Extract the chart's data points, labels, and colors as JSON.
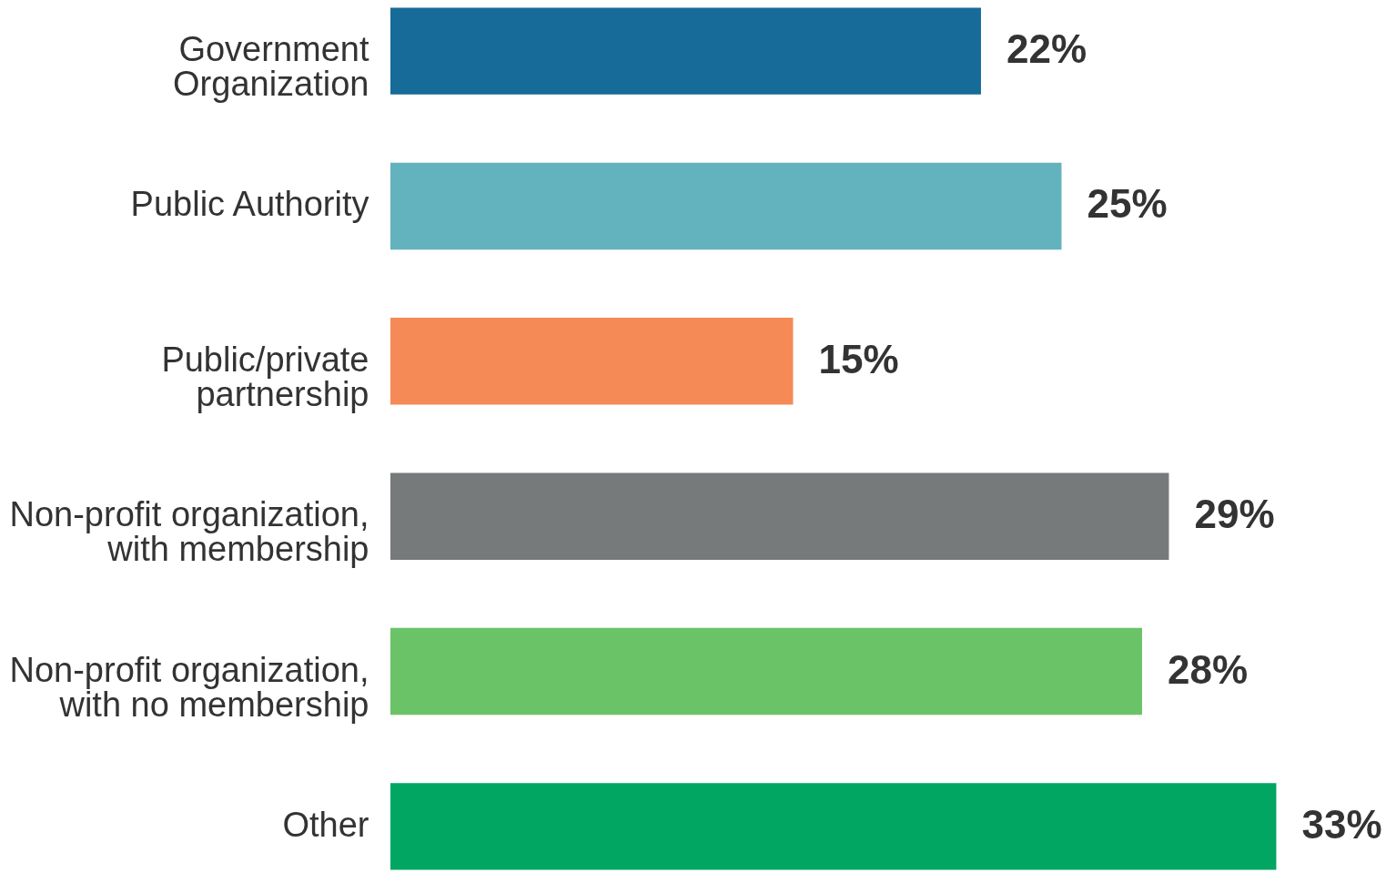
{
  "chart_data": {
    "type": "bar",
    "orientation": "horizontal",
    "categories": [
      "Government Organization",
      "Public Authority",
      "Public/private partnership",
      "Non-profit organization, with membership",
      "Non-profit organization, with no membership",
      "Other"
    ],
    "values": [
      22,
      25,
      15,
      29,
      28,
      33
    ],
    "colors": [
      "#176b98",
      "#63b3bf",
      "#f58a57",
      "#777a7b",
      "#6ac367",
      "#00a661"
    ],
    "value_labels": [
      "22%",
      "25%",
      "15%",
      "29%",
      "28%",
      "33%"
    ]
  }
}
